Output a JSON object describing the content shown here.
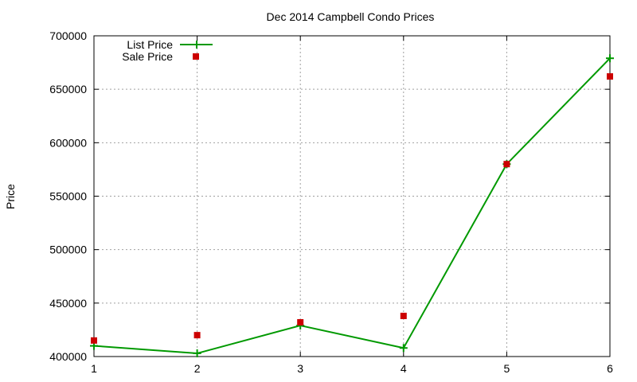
{
  "chart_data": {
    "type": "line",
    "title": "Dec 2014 Campbell Condo Prices",
    "xlabel": "",
    "ylabel": "Price",
    "x": [
      1,
      2,
      3,
      4,
      5,
      6
    ],
    "xlim": [
      1,
      6
    ],
    "ylim": [
      400000,
      700000
    ],
    "xticks": [
      "1",
      "2",
      "3",
      "4",
      "5",
      "6"
    ],
    "yticks": [
      "400000",
      "450000",
      "500000",
      "550000",
      "600000",
      "650000",
      "700000"
    ],
    "grid": true,
    "legend_position": "top-left",
    "series": [
      {
        "name": "List Price",
        "style": "line-with-plus-markers",
        "color": "#009900",
        "values": [
          410000,
          403000,
          429000,
          408000,
          580000,
          679000
        ]
      },
      {
        "name": "Sale Price",
        "style": "square-points",
        "color": "#cc0000",
        "values": [
          415000,
          420000,
          432000,
          438000,
          580000,
          662000
        ]
      }
    ]
  }
}
